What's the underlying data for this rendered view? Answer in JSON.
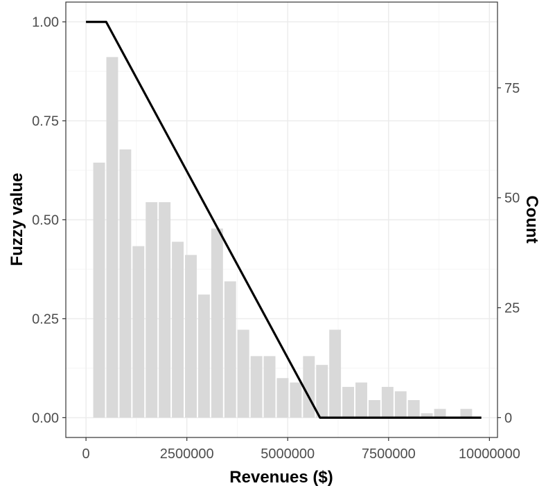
{
  "chart_data": {
    "type": "bar",
    "title": "",
    "xlabel": "Revenues ($)",
    "ylabel": "Fuzzy value",
    "y2label": "Count",
    "xlim": [
      -500000,
      10200000
    ],
    "ylim": [
      -0.05,
      1.05
    ],
    "y2lim": [
      -4.5,
      94.5
    ],
    "grid": true,
    "legend": "none",
    "x_ticks": [
      0,
      2500000,
      5000000,
      7500000,
      10000000
    ],
    "x_tick_labels": [
      "0",
      "2500000",
      "5000000",
      "7500000",
      "10000000"
    ],
    "y_ticks": [
      0,
      0.25,
      0.5,
      0.75,
      1
    ],
    "y_tick_labels": [
      "0.00",
      "0.25",
      "0.50",
      "0.75",
      "1.00"
    ],
    "y2_ticks": [
      0,
      25,
      50,
      75
    ],
    "y2_tick_labels": [
      "0",
      "25",
      "50",
      "75"
    ],
    "colors": {
      "bars": "#d9d9d9",
      "line": "#000000",
      "panel_border": "#333333",
      "grid": "#ebebeb"
    },
    "histogram": {
      "name": "Count",
      "bin_width": 325000,
      "bin_centers": [
        325000,
        650000,
        975000,
        1300000,
        1625000,
        1950000,
        2275000,
        2600000,
        2925000,
        3250000,
        3575000,
        3900000,
        4225000,
        4550000,
        4875000,
        5200000,
        5525000,
        5850000,
        6175000,
        6500000,
        6825000,
        7150000,
        7475000,
        7800000,
        8125000,
        8450000,
        8775000,
        9100000,
        9425000
      ],
      "counts": [
        58,
        82,
        61,
        39,
        49,
        49,
        40,
        37,
        28,
        43,
        31,
        20,
        14,
        14,
        9,
        8,
        14,
        12,
        20,
        7,
        8,
        4,
        7,
        6,
        4,
        1,
        2,
        0,
        2
      ]
    },
    "line": {
      "name": "Fuzzy value",
      "x": [
        0,
        500000,
        5800000,
        9800000
      ],
      "y": [
        1.0,
        1.0,
        0.0,
        0.0
      ]
    }
  }
}
